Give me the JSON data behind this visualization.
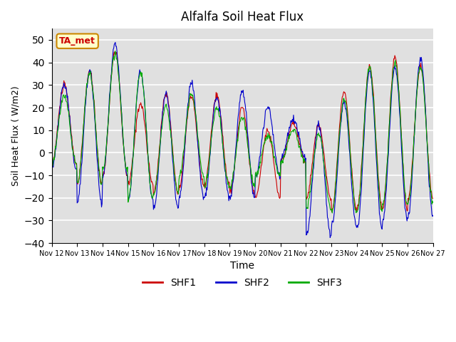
{
  "title": "Alfalfa Soil Heat Flux",
  "xlabel": "Time",
  "ylabel": "Soil Heat Flux ( W/m2)",
  "ylim": [
    -40,
    55
  ],
  "plot_bg_color": "#e0e0e0",
  "grid_color": "white",
  "shf1_color": "#cc0000",
  "shf2_color": "#0000cc",
  "shf3_color": "#00aa00",
  "legend_labels": [
    "SHF1",
    "SHF2",
    "SHF3"
  ],
  "annotation_text": "TA_met",
  "annotation_color": "#cc0000",
  "annotation_bg": "#ffffcc",
  "annotation_border": "#cc8800",
  "xtick_labels": [
    "Nov 12",
    "Nov 13",
    "Nov 14",
    "Nov 15",
    "Nov 16",
    "Nov 17",
    "Nov 18",
    "Nov 19",
    "Nov 20",
    "Nov 21",
    "Nov 22",
    "Nov 23",
    "Nov 24",
    "Nov 25",
    "Nov 26",
    "Nov 27"
  ],
  "num_days": 15,
  "pts_per_day": 48,
  "day_peaks_shf1": [
    30,
    36,
    45,
    22,
    26,
    25,
    25,
    20,
    10,
    13,
    12,
    27,
    38,
    42,
    38
  ],
  "day_peaks_shf2": [
    30,
    36,
    48,
    36,
    26,
    31,
    25,
    27,
    20,
    15,
    12,
    22,
    36,
    38,
    42
  ],
  "day_peaks_shf3": [
    25,
    35,
    44,
    36,
    21,
    26,
    20,
    16,
    8,
    10,
    8,
    24,
    38,
    40,
    38
  ],
  "day_troughs_shf1": [
    -5,
    -14,
    -10,
    -14,
    -18,
    -15,
    -14,
    -18,
    -20,
    -4,
    -20,
    -25,
    -24,
    -25,
    -20
  ],
  "day_troughs_shf2": [
    -7,
    -22,
    -10,
    -21,
    -25,
    -20,
    -20,
    -20,
    -11,
    -3,
    -37,
    -32,
    -33,
    -30,
    -28
  ],
  "day_troughs_shf3": [
    -5,
    -14,
    -8,
    -21,
    -18,
    -10,
    -15,
    -15,
    -10,
    -4,
    -25,
    -26,
    -26,
    -23,
    -22
  ],
  "yticks": [
    -40,
    -30,
    -20,
    -10,
    0,
    10,
    20,
    30,
    40,
    50
  ]
}
